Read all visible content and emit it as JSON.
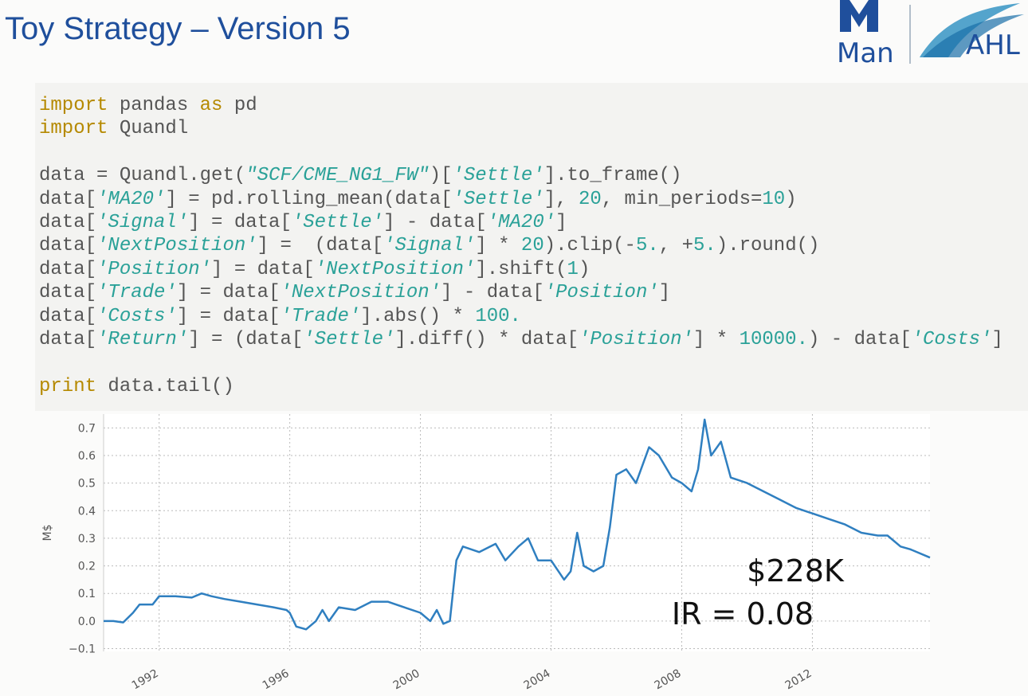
{
  "header": {
    "title": "Toy Strategy – Version 5",
    "logo_left": "Man",
    "logo_right": "AHL"
  },
  "code": {
    "styles": {
      "kw": "#b58900",
      "str": "#2aa198",
      "num": "#2aa198",
      "plain": "#555555"
    },
    "lines": [
      [
        {
          "text": "import",
          "style": "kw"
        },
        {
          "text": " pandas ",
          "style": "plain"
        },
        {
          "text": "as",
          "style": "kw"
        },
        {
          "text": " pd",
          "style": "plain"
        }
      ],
      [
        {
          "text": "import",
          "style": "kw"
        },
        {
          "text": " Quandl",
          "style": "plain"
        }
      ],
      [],
      [
        {
          "text": "data = Quandl.get(",
          "style": "plain"
        },
        {
          "text": "\"SCF/CME_NG1_FW\"",
          "style": "str"
        },
        {
          "text": ")[",
          "style": "plain"
        },
        {
          "text": "'Settle'",
          "style": "str"
        },
        {
          "text": "].to_frame()",
          "style": "plain"
        }
      ],
      [
        {
          "text": "data[",
          "style": "plain"
        },
        {
          "text": "'MA20'",
          "style": "str"
        },
        {
          "text": "] = pd.rolling_mean(data[",
          "style": "plain"
        },
        {
          "text": "'Settle'",
          "style": "str"
        },
        {
          "text": "], ",
          "style": "plain"
        },
        {
          "text": "20",
          "style": "num"
        },
        {
          "text": ", min_periods=",
          "style": "plain"
        },
        {
          "text": "10",
          "style": "num"
        },
        {
          "text": ")",
          "style": "plain"
        }
      ],
      [
        {
          "text": "data[",
          "style": "plain"
        },
        {
          "text": "'Signal'",
          "style": "str"
        },
        {
          "text": "] = data[",
          "style": "plain"
        },
        {
          "text": "'Settle'",
          "style": "str"
        },
        {
          "text": "] - data[",
          "style": "plain"
        },
        {
          "text": "'MA20'",
          "style": "str"
        },
        {
          "text": "]",
          "style": "plain"
        }
      ],
      [
        {
          "text": "data[",
          "style": "plain"
        },
        {
          "text": "'NextPosition'",
          "style": "str"
        },
        {
          "text": "] =  (data[",
          "style": "plain"
        },
        {
          "text": "'Signal'",
          "style": "str"
        },
        {
          "text": "] * ",
          "style": "plain"
        },
        {
          "text": "20",
          "style": "num"
        },
        {
          "text": ").clip(-",
          "style": "plain"
        },
        {
          "text": "5.",
          "style": "num"
        },
        {
          "text": ", +",
          "style": "plain"
        },
        {
          "text": "5.",
          "style": "num"
        },
        {
          "text": ").round()",
          "style": "plain"
        }
      ],
      [
        {
          "text": "data[",
          "style": "plain"
        },
        {
          "text": "'Position'",
          "style": "str"
        },
        {
          "text": "] = data[",
          "style": "plain"
        },
        {
          "text": "'NextPosition'",
          "style": "str"
        },
        {
          "text": "].shift(",
          "style": "plain"
        },
        {
          "text": "1",
          "style": "num"
        },
        {
          "text": ")",
          "style": "plain"
        }
      ],
      [
        {
          "text": "data[",
          "style": "plain"
        },
        {
          "text": "'Trade'",
          "style": "str"
        },
        {
          "text": "] = data[",
          "style": "plain"
        },
        {
          "text": "'NextPosition'",
          "style": "str"
        },
        {
          "text": "] - data[",
          "style": "plain"
        },
        {
          "text": "'Position'",
          "style": "str"
        },
        {
          "text": "]",
          "style": "plain"
        }
      ],
      [
        {
          "text": "data[",
          "style": "plain"
        },
        {
          "text": "'Costs'",
          "style": "str"
        },
        {
          "text": "] = data[",
          "style": "plain"
        },
        {
          "text": "'Trade'",
          "style": "str"
        },
        {
          "text": "].abs() * ",
          "style": "plain"
        },
        {
          "text": "100.",
          "style": "num"
        }
      ],
      [
        {
          "text": "data[",
          "style": "plain"
        },
        {
          "text": "'Return'",
          "style": "str"
        },
        {
          "text": "] = (data[",
          "style": "plain"
        },
        {
          "text": "'Settle'",
          "style": "str"
        },
        {
          "text": "].diff() * data[",
          "style": "plain"
        },
        {
          "text": "'Position'",
          "style": "str"
        },
        {
          "text": "] * ",
          "style": "plain"
        },
        {
          "text": "10000.",
          "style": "num"
        },
        {
          "text": ") - data[",
          "style": "plain"
        },
        {
          "text": "'Costs'",
          "style": "str"
        },
        {
          "text": "]",
          "style": "plain"
        }
      ],
      [],
      [
        {
          "text": "print",
          "style": "kw"
        },
        {
          "text": " data.tail()",
          "style": "plain"
        }
      ]
    ]
  },
  "chart_data": {
    "type": "line",
    "ylabel": "M$",
    "color": "#2f7fc0",
    "grid": true,
    "annotations": [
      "$228K",
      "IR = 0.08"
    ],
    "x": [
      1990.3,
      1990.6,
      1990.9,
      1991.2,
      1991.4,
      1991.8,
      1992.0,
      1992.5,
      1993.0,
      1993.3,
      1993.6,
      1994.0,
      1994.5,
      1995.0,
      1995.5,
      1995.9,
      1996.0,
      1996.2,
      1996.5,
      1996.8,
      1997.0,
      1997.2,
      1997.5,
      1998.0,
      1998.5,
      1999.0,
      1999.5,
      2000.0,
      2000.3,
      2000.5,
      2000.7,
      2000.9,
      2001.1,
      2001.3,
      2001.8,
      2002.3,
      2002.6,
      2003.0,
      2003.3,
      2003.6,
      2004.0,
      2004.4,
      2004.6,
      2004.8,
      2005.0,
      2005.3,
      2005.6,
      2005.8,
      2006.0,
      2006.3,
      2006.6,
      2007.0,
      2007.3,
      2007.7,
      2008.0,
      2008.3,
      2008.5,
      2008.7,
      2008.9,
      2009.2,
      2009.5,
      2010.0,
      2010.5,
      2011.0,
      2011.5,
      2012.0,
      2012.5,
      2013.0,
      2013.5,
      2014.0,
      2014.3,
      2014.7,
      2015.0,
      2015.6
    ],
    "values": [
      0.0,
      0.0,
      -0.005,
      0.03,
      0.06,
      0.06,
      0.09,
      0.09,
      0.085,
      0.1,
      0.09,
      0.08,
      0.07,
      0.06,
      0.05,
      0.04,
      0.03,
      -0.02,
      -0.03,
      0.0,
      0.04,
      0.0,
      0.05,
      0.04,
      0.07,
      0.07,
      0.05,
      0.03,
      0.0,
      0.04,
      -0.01,
      0.0,
      0.22,
      0.27,
      0.25,
      0.28,
      0.22,
      0.27,
      0.3,
      0.22,
      0.22,
      0.15,
      0.18,
      0.32,
      0.2,
      0.18,
      0.2,
      0.34,
      0.53,
      0.55,
      0.5,
      0.63,
      0.6,
      0.52,
      0.5,
      0.47,
      0.55,
      0.73,
      0.6,
      0.65,
      0.52,
      0.5,
      0.47,
      0.44,
      0.41,
      0.39,
      0.37,
      0.35,
      0.32,
      0.31,
      0.31,
      0.27,
      0.26,
      0.23
    ],
    "xlim": [
      1990.3,
      2015.6
    ],
    "xticks": [
      1992,
      1996,
      2000,
      2004,
      2008,
      2012
    ],
    "ylim": [
      -0.11,
      0.75
    ],
    "yticks": [
      {
        "value": -0.1,
        "label": "−0.1"
      },
      {
        "value": 0,
        "label": "0.0"
      },
      0.1,
      0.2,
      0.3,
      0.4,
      0.5,
      0.6,
      0.7
    ]
  }
}
